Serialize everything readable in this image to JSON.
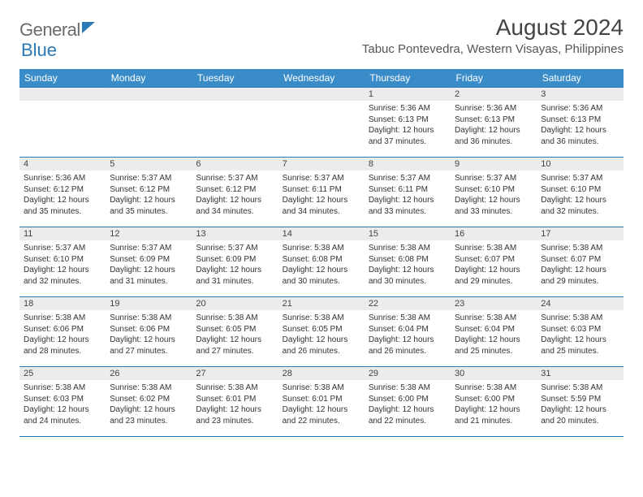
{
  "logo": {
    "part1": "General",
    "part2": "Blue"
  },
  "title": "August 2024",
  "location": "Tabuc Pontevedra, Western Visayas, Philippines",
  "colors": {
    "header_bg": "#3a8cc9",
    "header_text": "#ffffff",
    "day_border": "#2a7ab8",
    "daynum_bg": "#ececec",
    "body_text": "#333333",
    "logo_gray": "#6b6b6b",
    "logo_blue": "#2a7ab8"
  },
  "weekdays": [
    "Sunday",
    "Monday",
    "Tuesday",
    "Wednesday",
    "Thursday",
    "Friday",
    "Saturday"
  ],
  "weeks": [
    [
      {
        "n": "",
        "lines": [
          "",
          "",
          "",
          ""
        ]
      },
      {
        "n": "",
        "lines": [
          "",
          "",
          "",
          ""
        ]
      },
      {
        "n": "",
        "lines": [
          "",
          "",
          "",
          ""
        ]
      },
      {
        "n": "",
        "lines": [
          "",
          "",
          "",
          ""
        ]
      },
      {
        "n": "1",
        "lines": [
          "Sunrise: 5:36 AM",
          "Sunset: 6:13 PM",
          "Daylight: 12 hours",
          "and 37 minutes."
        ]
      },
      {
        "n": "2",
        "lines": [
          "Sunrise: 5:36 AM",
          "Sunset: 6:13 PM",
          "Daylight: 12 hours",
          "and 36 minutes."
        ]
      },
      {
        "n": "3",
        "lines": [
          "Sunrise: 5:36 AM",
          "Sunset: 6:13 PM",
          "Daylight: 12 hours",
          "and 36 minutes."
        ]
      }
    ],
    [
      {
        "n": "4",
        "lines": [
          "Sunrise: 5:36 AM",
          "Sunset: 6:12 PM",
          "Daylight: 12 hours",
          "and 35 minutes."
        ]
      },
      {
        "n": "5",
        "lines": [
          "Sunrise: 5:37 AM",
          "Sunset: 6:12 PM",
          "Daylight: 12 hours",
          "and 35 minutes."
        ]
      },
      {
        "n": "6",
        "lines": [
          "Sunrise: 5:37 AM",
          "Sunset: 6:12 PM",
          "Daylight: 12 hours",
          "and 34 minutes."
        ]
      },
      {
        "n": "7",
        "lines": [
          "Sunrise: 5:37 AM",
          "Sunset: 6:11 PM",
          "Daylight: 12 hours",
          "and 34 minutes."
        ]
      },
      {
        "n": "8",
        "lines": [
          "Sunrise: 5:37 AM",
          "Sunset: 6:11 PM",
          "Daylight: 12 hours",
          "and 33 minutes."
        ]
      },
      {
        "n": "9",
        "lines": [
          "Sunrise: 5:37 AM",
          "Sunset: 6:10 PM",
          "Daylight: 12 hours",
          "and 33 minutes."
        ]
      },
      {
        "n": "10",
        "lines": [
          "Sunrise: 5:37 AM",
          "Sunset: 6:10 PM",
          "Daylight: 12 hours",
          "and 32 minutes."
        ]
      }
    ],
    [
      {
        "n": "11",
        "lines": [
          "Sunrise: 5:37 AM",
          "Sunset: 6:10 PM",
          "Daylight: 12 hours",
          "and 32 minutes."
        ]
      },
      {
        "n": "12",
        "lines": [
          "Sunrise: 5:37 AM",
          "Sunset: 6:09 PM",
          "Daylight: 12 hours",
          "and 31 minutes."
        ]
      },
      {
        "n": "13",
        "lines": [
          "Sunrise: 5:37 AM",
          "Sunset: 6:09 PM",
          "Daylight: 12 hours",
          "and 31 minutes."
        ]
      },
      {
        "n": "14",
        "lines": [
          "Sunrise: 5:38 AM",
          "Sunset: 6:08 PM",
          "Daylight: 12 hours",
          "and 30 minutes."
        ]
      },
      {
        "n": "15",
        "lines": [
          "Sunrise: 5:38 AM",
          "Sunset: 6:08 PM",
          "Daylight: 12 hours",
          "and 30 minutes."
        ]
      },
      {
        "n": "16",
        "lines": [
          "Sunrise: 5:38 AM",
          "Sunset: 6:07 PM",
          "Daylight: 12 hours",
          "and 29 minutes."
        ]
      },
      {
        "n": "17",
        "lines": [
          "Sunrise: 5:38 AM",
          "Sunset: 6:07 PM",
          "Daylight: 12 hours",
          "and 29 minutes."
        ]
      }
    ],
    [
      {
        "n": "18",
        "lines": [
          "Sunrise: 5:38 AM",
          "Sunset: 6:06 PM",
          "Daylight: 12 hours",
          "and 28 minutes."
        ]
      },
      {
        "n": "19",
        "lines": [
          "Sunrise: 5:38 AM",
          "Sunset: 6:06 PM",
          "Daylight: 12 hours",
          "and 27 minutes."
        ]
      },
      {
        "n": "20",
        "lines": [
          "Sunrise: 5:38 AM",
          "Sunset: 6:05 PM",
          "Daylight: 12 hours",
          "and 27 minutes."
        ]
      },
      {
        "n": "21",
        "lines": [
          "Sunrise: 5:38 AM",
          "Sunset: 6:05 PM",
          "Daylight: 12 hours",
          "and 26 minutes."
        ]
      },
      {
        "n": "22",
        "lines": [
          "Sunrise: 5:38 AM",
          "Sunset: 6:04 PM",
          "Daylight: 12 hours",
          "and 26 minutes."
        ]
      },
      {
        "n": "23",
        "lines": [
          "Sunrise: 5:38 AM",
          "Sunset: 6:04 PM",
          "Daylight: 12 hours",
          "and 25 minutes."
        ]
      },
      {
        "n": "24",
        "lines": [
          "Sunrise: 5:38 AM",
          "Sunset: 6:03 PM",
          "Daylight: 12 hours",
          "and 25 minutes."
        ]
      }
    ],
    [
      {
        "n": "25",
        "lines": [
          "Sunrise: 5:38 AM",
          "Sunset: 6:03 PM",
          "Daylight: 12 hours",
          "and 24 minutes."
        ]
      },
      {
        "n": "26",
        "lines": [
          "Sunrise: 5:38 AM",
          "Sunset: 6:02 PM",
          "Daylight: 12 hours",
          "and 23 minutes."
        ]
      },
      {
        "n": "27",
        "lines": [
          "Sunrise: 5:38 AM",
          "Sunset: 6:01 PM",
          "Daylight: 12 hours",
          "and 23 minutes."
        ]
      },
      {
        "n": "28",
        "lines": [
          "Sunrise: 5:38 AM",
          "Sunset: 6:01 PM",
          "Daylight: 12 hours",
          "and 22 minutes."
        ]
      },
      {
        "n": "29",
        "lines": [
          "Sunrise: 5:38 AM",
          "Sunset: 6:00 PM",
          "Daylight: 12 hours",
          "and 22 minutes."
        ]
      },
      {
        "n": "30",
        "lines": [
          "Sunrise: 5:38 AM",
          "Sunset: 6:00 PM",
          "Daylight: 12 hours",
          "and 21 minutes."
        ]
      },
      {
        "n": "31",
        "lines": [
          "Sunrise: 5:38 AM",
          "Sunset: 5:59 PM",
          "Daylight: 12 hours",
          "and 20 minutes."
        ]
      }
    ]
  ]
}
